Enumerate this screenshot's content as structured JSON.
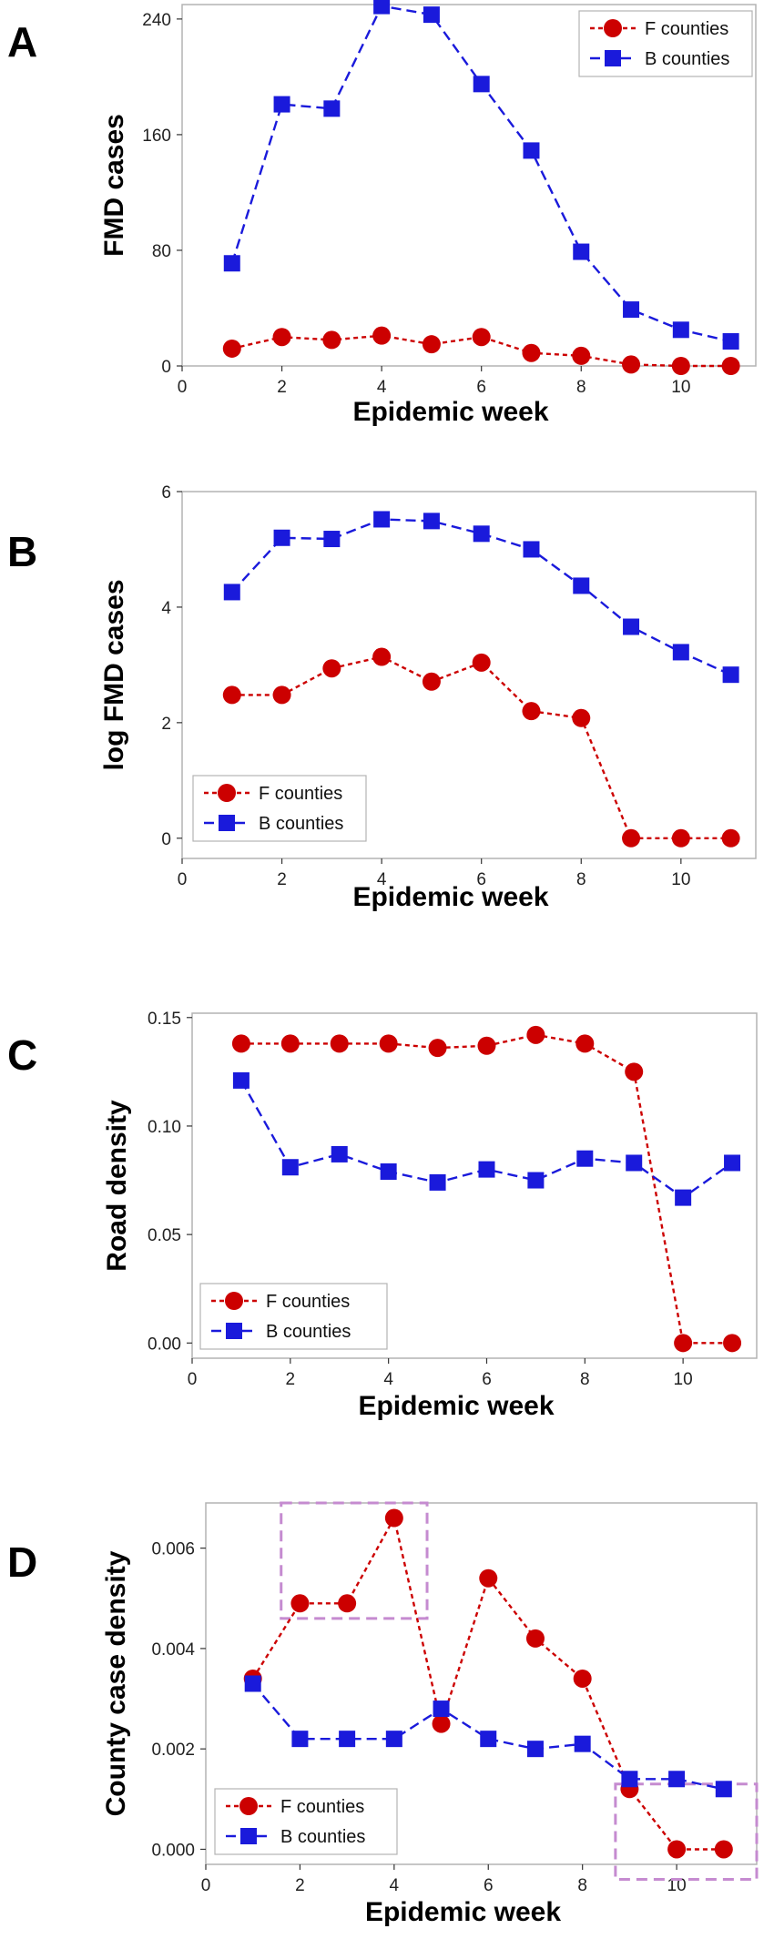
{
  "chart_data": [
    {
      "type": "line",
      "panel": "A",
      "title": "",
      "xlabel": "Epidemic week",
      "ylabel": "FMD cases",
      "xlim": [
        0,
        11.5
      ],
      "ylim": [
        0,
        250
      ],
      "xticks": [
        0,
        2,
        4,
        6,
        8,
        10
      ],
      "yticks": [
        0,
        80,
        160,
        240
      ],
      "ytick_labels": [
        "0",
        "80",
        "160",
        "240"
      ],
      "x": [
        1,
        2,
        3,
        4,
        5,
        6,
        7,
        8,
        9,
        10,
        11
      ],
      "series": [
        {
          "name": "F counties",
          "marker": "circle",
          "color": "#cc0000",
          "values": [
            12,
            20,
            18,
            21,
            15,
            20,
            9,
            7,
            1,
            0,
            0
          ]
        },
        {
          "name": "B counties",
          "marker": "square",
          "color": "#1a1adb",
          "values": [
            71,
            181,
            178,
            249,
            243,
            195,
            149,
            79,
            39,
            25,
            17
          ]
        }
      ],
      "legend": "top-right"
    },
    {
      "type": "line",
      "panel": "B",
      "title": "",
      "xlabel": "Epidemic week",
      "ylabel": "log FMD cases",
      "xlim": [
        0,
        11.5
      ],
      "ylim": [
        -0.35,
        6.0
      ],
      "xticks": [
        0,
        2,
        4,
        6,
        8,
        10
      ],
      "yticks": [
        0,
        2,
        4,
        6
      ],
      "ytick_labels": [
        "0",
        "2",
        "4",
        "6"
      ],
      "x": [
        1,
        2,
        3,
        4,
        5,
        6,
        7,
        8,
        9,
        10,
        11
      ],
      "series": [
        {
          "name": "F counties",
          "marker": "circle",
          "color": "#cc0000",
          "values": [
            2.48,
            2.48,
            2.94,
            3.14,
            2.71,
            3.04,
            2.2,
            2.08,
            0,
            0,
            0
          ]
        },
        {
          "name": "B counties",
          "marker": "square",
          "color": "#1a1adb",
          "values": [
            4.26,
            5.2,
            5.18,
            5.52,
            5.49,
            5.27,
            5.0,
            4.37,
            3.66,
            3.22,
            2.83
          ]
        }
      ],
      "legend": "bottom-left"
    },
    {
      "type": "line",
      "panel": "C",
      "title": "",
      "xlabel": "Epidemic week",
      "ylabel": "Road density",
      "xlim": [
        0,
        11.5
      ],
      "ylim": [
        -0.007,
        0.152
      ],
      "xticks": [
        0,
        2,
        4,
        6,
        8,
        10
      ],
      "yticks": [
        0,
        0.05,
        0.1,
        0.15
      ],
      "ytick_labels": [
        "0.00",
        "0.05",
        "0.10",
        "0.15"
      ],
      "x": [
        1,
        2,
        3,
        4,
        5,
        6,
        7,
        8,
        9,
        10,
        11
      ],
      "series": [
        {
          "name": "F counties",
          "marker": "circle",
          "color": "#cc0000",
          "values": [
            0.138,
            0.138,
            0.138,
            0.138,
            0.136,
            0.137,
            0.142,
            0.138,
            0.125,
            0.0,
            0.0
          ]
        },
        {
          "name": "B counties",
          "marker": "square",
          "color": "#1a1adb",
          "values": [
            0.121,
            0.081,
            0.087,
            0.079,
            0.074,
            0.08,
            0.075,
            0.085,
            0.083,
            0.067,
            0.083
          ]
        }
      ],
      "legend": "bottom-left"
    },
    {
      "type": "line",
      "panel": "D",
      "title": "",
      "xlabel": "Epidemic week",
      "ylabel": "County case density",
      "xlim": [
        0,
        11.7
      ],
      "ylim": [
        -0.0003,
        0.0069
      ],
      "xticks": [
        0,
        2,
        4,
        6,
        8,
        10
      ],
      "yticks": [
        0,
        0.002,
        0.004,
        0.006
      ],
      "ytick_labels": [
        "0.000",
        "0.002",
        "0.004",
        "0.006"
      ],
      "x": [
        1,
        2,
        3,
        4,
        5,
        6,
        7,
        8,
        9,
        10,
        11
      ],
      "series": [
        {
          "name": "F counties",
          "marker": "circle",
          "color": "#cc0000",
          "values": [
            0.0034,
            0.0049,
            0.0049,
            0.0066,
            0.0025,
            0.0054,
            0.0042,
            0.0034,
            0.0012,
            0.0,
            0.0
          ]
        },
        {
          "name": "B counties",
          "marker": "square",
          "color": "#1a1adb",
          "values": [
            0.0033,
            0.0022,
            0.0022,
            0.0022,
            0.0028,
            0.0022,
            0.002,
            0.0021,
            0.0014,
            0.0014,
            0.0012
          ]
        }
      ],
      "legend": "bottom-left",
      "highlight_boxes": [
        {
          "x_range": [
            1.6,
            4.7
          ],
          "y_range": [
            0.0046,
            0.0069
          ],
          "color": "#c58bd0"
        },
        {
          "x_range": [
            8.7,
            11.7
          ],
          "y_range": [
            -0.0006,
            0.0013
          ],
          "color": "#c58bd0"
        }
      ]
    }
  ],
  "style": {
    "frame_color": "#b3b3b3",
    "axis_color": "#333333",
    "panel_letter_color": "#000000"
  }
}
